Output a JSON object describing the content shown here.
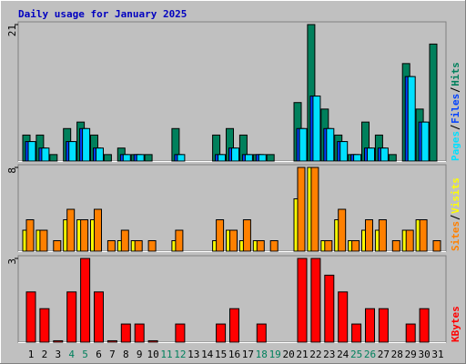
{
  "title": "Daily usage for January 2025",
  "chart_data": [
    {
      "type": "bar",
      "ylim": [
        0,
        21
      ],
      "yticks": [
        21
      ],
      "series": [
        {
          "name": "Hits",
          "color": "#00805c",
          "values": [
            4,
            4,
            1,
            5,
            6,
            4,
            1,
            2,
            1,
            1,
            0,
            5,
            0,
            0,
            4,
            5,
            4,
            1,
            1,
            0,
            9,
            21,
            8,
            4,
            1,
            6,
            4,
            1,
            15,
            8,
            18
          ]
        },
        {
          "name": "Files",
          "color": "#0040ff",
          "values": [
            3,
            2,
            0,
            3,
            5,
            2,
            0,
            1,
            1,
            0,
            0,
            1,
            0,
            0,
            1,
            2,
            1,
            1,
            0,
            0,
            5,
            10,
            5,
            3,
            1,
            2,
            2,
            0,
            13,
            6,
            0
          ]
        },
        {
          "name": "Pages",
          "color": "#00e0ff",
          "values": [
            3,
            2,
            0,
            3,
            5,
            2,
            0,
            1,
            1,
            0,
            0,
            1,
            0,
            0,
            1,
            2,
            1,
            1,
            0,
            0,
            5,
            10,
            5,
            3,
            1,
            2,
            2,
            0,
            13,
            6,
            0
          ]
        }
      ]
    },
    {
      "type": "bar",
      "ylim": [
        0,
        8
      ],
      "yticks": [
        8
      ],
      "series": [
        {
          "name": "Visits",
          "color": "#ffff00",
          "values": [
            2,
            2,
            0,
            3,
            3,
            3,
            0,
            1,
            1,
            0,
            0,
            1,
            0,
            0,
            1,
            2,
            1,
            1,
            0,
            0,
            5,
            8,
            1,
            3,
            1,
            2,
            2,
            0,
            2,
            3,
            0
          ]
        },
        {
          "name": "Sites",
          "color": "#ff8000",
          "values": [
            3,
            2,
            1,
            4,
            3,
            4,
            1,
            2,
            1,
            1,
            0,
            2,
            0,
            0,
            3,
            2,
            3,
            1,
            1,
            0,
            8,
            8,
            1,
            4,
            1,
            3,
            3,
            1,
            2,
            3,
            1
          ]
        }
      ]
    },
    {
      "type": "bar",
      "ylim": [
        0,
        3
      ],
      "yticks": [
        3
      ],
      "categories": [
        "1",
        "2",
        "3",
        "4",
        "5",
        "6",
        "7",
        "8",
        "9",
        "10",
        "11",
        "12",
        "13",
        "14",
        "15",
        "16",
        "17",
        "18",
        "19",
        "20",
        "21",
        "22",
        "23",
        "24",
        "25",
        "26",
        "27",
        "28",
        "29",
        "30",
        "31"
      ],
      "series": [
        {
          "name": "KBytes",
          "color": "#ff0000",
          "values": [
            1.8,
            1.2,
            0.05,
            1.8,
            3.0,
            1.8,
            0.05,
            0.65,
            0.65,
            0.05,
            0,
            0.65,
            0,
            0,
            0.65,
            1.2,
            0,
            0.65,
            0,
            0,
            3.0,
            3.0,
            2.4,
            1.8,
            0.65,
            1.2,
            1.2,
            0,
            0.65,
            1.2,
            0
          ]
        }
      ]
    }
  ]
}
